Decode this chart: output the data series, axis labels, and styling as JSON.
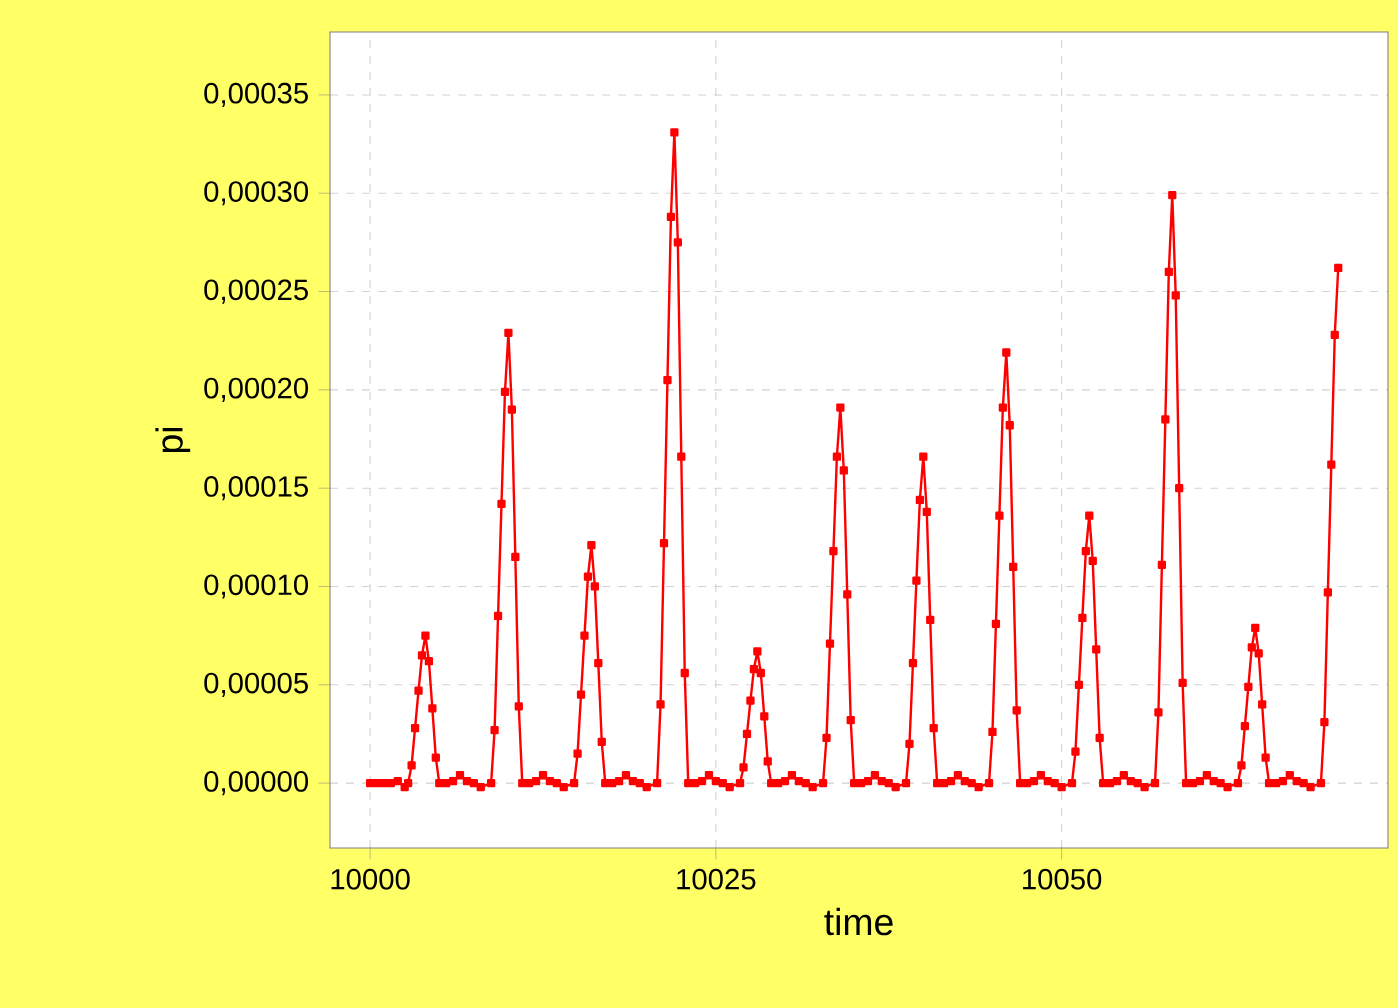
{
  "chart_data": {
    "type": "line",
    "xlabel": "time",
    "ylabel": "pi",
    "xlim": [
      9997.1,
      10073.6
    ],
    "ylim": [
      -3.3e-05,
      0.000382
    ],
    "xticks": [
      10000,
      10025,
      10050
    ],
    "yticks": [
      {
        "value": 0,
        "label": "0,00000"
      },
      {
        "value": 5e-05,
        "label": "0,00005"
      },
      {
        "value": 0.0001,
        "label": "0,00010"
      },
      {
        "value": 0.00015,
        "label": "0,00015"
      },
      {
        "value": 0.0002,
        "label": "0,00020"
      },
      {
        "value": 0.00025,
        "label": "0,00025"
      },
      {
        "value": 0.0003,
        "label": "0,00030"
      },
      {
        "value": 0.00035,
        "label": "0,00035"
      }
    ],
    "grid": true,
    "marker": "square",
    "line_style": "solid",
    "series": [
      {
        "color": "#ff0000",
        "x": [
          10000,
          10000.5,
          10001,
          10001.5,
          10002,
          10002.5,
          10002.75,
          10003,
          10003.25,
          10003.5,
          10003.75,
          10004,
          10004.25,
          10004.5,
          10004.75,
          10005,
          10005.5,
          10006,
          10006.5,
          10007,
          10007.5,
          10008,
          10008.75,
          10009,
          10009.25,
          10009.5,
          10009.75,
          10010,
          10010.25,
          10010.5,
          10010.75,
          10011,
          10011.5,
          10012,
          10012.5,
          10013,
          10013.5,
          10014,
          10014.75,
          10015,
          10015.25,
          10015.5,
          10015.75,
          10016,
          10016.25,
          10016.5,
          10016.75,
          10017,
          10017.5,
          10018,
          10018.5,
          10019,
          10019.5,
          10020,
          10020.75,
          10021,
          10021.25,
          10021.5,
          10021.75,
          10022,
          10022.25,
          10022.5,
          10022.75,
          10023,
          10023.5,
          10024,
          10024.5,
          10025,
          10025.5,
          10026,
          10026.75,
          10027,
          10027.25,
          10027.5,
          10027.75,
          10028,
          10028.25,
          10028.5,
          10028.75,
          10029,
          10029.5,
          10030,
          10030.5,
          10031,
          10031.5,
          10032,
          10032.75,
          10033,
          10033.25,
          10033.5,
          10033.75,
          10034,
          10034.25,
          10034.5,
          10034.75,
          10035,
          10035.5,
          10036,
          10036.5,
          10037,
          10037.5,
          10038,
          10038.75,
          10039,
          10039.25,
          10039.5,
          10039.75,
          10040,
          10040.25,
          10040.5,
          10040.75,
          10041,
          10041.5,
          10042,
          10042.5,
          10043,
          10043.5,
          10044,
          10044.75,
          10045,
          10045.25,
          10045.5,
          10045.75,
          10046,
          10046.25,
          10046.5,
          10046.75,
          10047,
          10047.5,
          10048,
          10048.5,
          10049,
          10049.5,
          10050,
          10050.75,
          10051,
          10051.25,
          10051.5,
          10051.75,
          10052,
          10052.25,
          10052.5,
          10052.75,
          10053,
          10053.5,
          10054,
          10054.5,
          10055,
          10055.5,
          10056,
          10056.75,
          10057,
          10057.25,
          10057.5,
          10057.75,
          10058,
          10058.25,
          10058.5,
          10058.75,
          10059,
          10059.5,
          10060,
          10060.5,
          10061,
          10061.5,
          10062,
          10062.75,
          10063,
          10063.25,
          10063.5,
          10063.75,
          10064,
          10064.25,
          10064.5,
          10064.75,
          10065,
          10065.5,
          10066,
          10066.5,
          10067,
          10067.5,
          10068,
          10068.75,
          10069,
          10069.25,
          10069.5,
          10069.75,
          10070
        ],
        "values": [
          0,
          0,
          0,
          0,
          1e-06,
          -2e-06,
          0,
          9e-06,
          2.8e-05,
          4.7e-05,
          6.5e-05,
          7.5e-05,
          6.2e-05,
          3.8e-05,
          1.3e-05,
          0,
          0,
          1e-06,
          4e-06,
          1e-06,
          0,
          -2e-06,
          0,
          2.7e-05,
          8.5e-05,
          0.000142,
          0.000199,
          0.000229,
          0.00019,
          0.000115,
          3.9e-05,
          0,
          0,
          1e-06,
          4e-06,
          1e-06,
          0,
          -2e-06,
          0,
          1.5e-05,
          4.5e-05,
          7.5e-05,
          0.000105,
          0.000121,
          0.0001,
          6.1e-05,
          2.1e-05,
          0,
          0,
          1e-06,
          4e-06,
          1e-06,
          0,
          -2e-06,
          0,
          4e-05,
          0.000122,
          0.000205,
          0.000288,
          0.000331,
          0.000275,
          0.000166,
          5.6e-05,
          0,
          0,
          1e-06,
          4e-06,
          1e-06,
          0,
          -2e-06,
          0,
          8e-06,
          2.5e-05,
          4.2e-05,
          5.8e-05,
          6.7e-05,
          5.6e-05,
          3.4e-05,
          1.1e-05,
          0,
          0,
          1e-06,
          4e-06,
          1e-06,
          0,
          -2e-06,
          0,
          2.3e-05,
          7.1e-05,
          0.000118,
          0.000166,
          0.000191,
          0.000159,
          9.6e-05,
          3.2e-05,
          0,
          0,
          1e-06,
          4e-06,
          1e-06,
          0,
          -2e-06,
          0,
          2e-05,
          6.1e-05,
          0.000103,
          0.000144,
          0.000166,
          0.000138,
          8.3e-05,
          2.8e-05,
          0,
          0,
          1e-06,
          4e-06,
          1e-06,
          0,
          -2e-06,
          0,
          2.6e-05,
          8.1e-05,
          0.000136,
          0.000191,
          0.000219,
          0.000182,
          0.00011,
          3.7e-05,
          0,
          0,
          1e-06,
          4e-06,
          1e-06,
          0,
          -2e-06,
          0,
          1.6e-05,
          5e-05,
          8.4e-05,
          0.000118,
          0.000136,
          0.000113,
          6.8e-05,
          2.3e-05,
          0,
          0,
          1e-06,
          4e-06,
          1e-06,
          0,
          -2e-06,
          0,
          3.6e-05,
          0.000111,
          0.000185,
          0.00026,
          0.000299,
          0.000248,
          0.00015,
          5.1e-05,
          0,
          0,
          1e-06,
          4e-06,
          1e-06,
          0,
          -2e-06,
          0,
          9e-06,
          2.9e-05,
          4.9e-05,
          6.9e-05,
          7.9e-05,
          6.6e-05,
          4e-05,
          1.3e-05,
          0,
          0,
          1e-06,
          4e-06,
          1e-06,
          0,
          -2e-06,
          0,
          3.1e-05,
          9.7e-05,
          0.000162,
          0.000228,
          0.000262
        ]
      }
    ]
  }
}
